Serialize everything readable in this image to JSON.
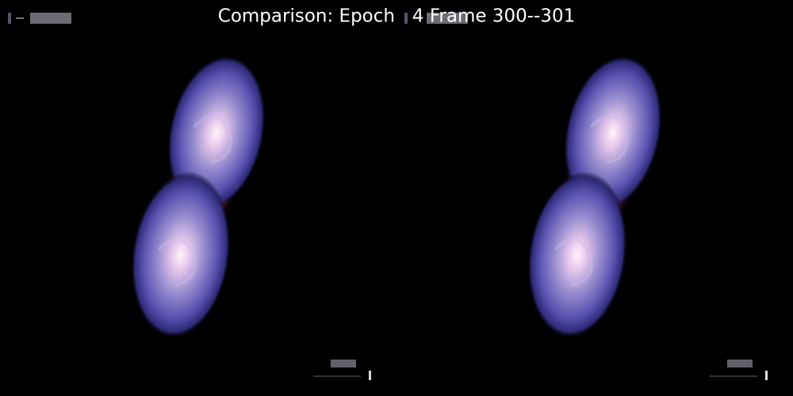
{
  "title": "Comparison: Epoch   4 Frame 300--301"
}
